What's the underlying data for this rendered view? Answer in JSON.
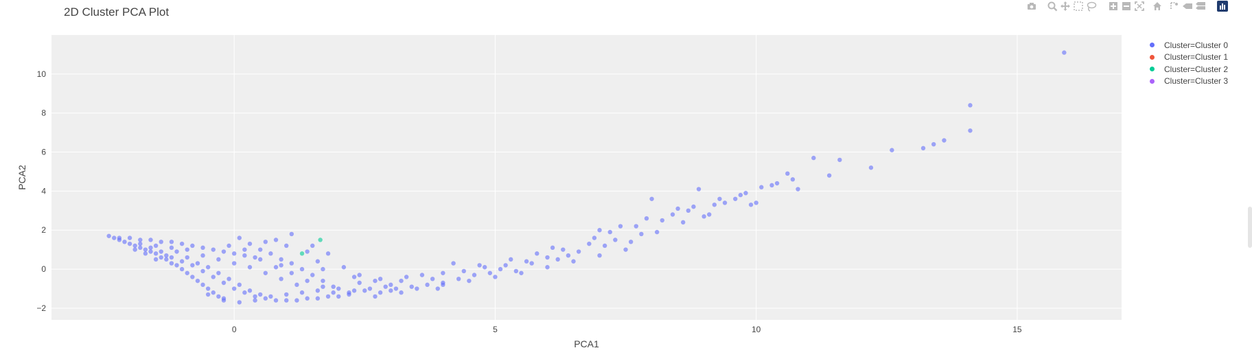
{
  "modebar": {
    "icons": [
      "camera-icon",
      "zoom-icon",
      "pan-icon",
      "box-select-icon",
      "lasso-icon",
      "zoom-in-icon",
      "zoom-out-icon",
      "autoscale-icon",
      "home-icon",
      "spike-lines-icon",
      "hover-closest-icon",
      "hover-compare-icon",
      "plotly-logo-icon"
    ],
    "accent": "#1f3b6e",
    "icon_color": "#b9b9b9"
  },
  "colors": {
    "background": "#ffffff",
    "plot_bg": "#efefef",
    "grid": "#ffffff"
  },
  "chart_data": {
    "type": "scatter",
    "title": "2D Cluster PCA Plot",
    "xlabel": "PCA1",
    "ylabel": "PCA2",
    "xlim": [
      -3.5,
      17
    ],
    "ylim": [
      -2.6,
      12
    ],
    "xticks": [
      0,
      5,
      10,
      15
    ],
    "yticks": [
      -2,
      0,
      2,
      4,
      6,
      8,
      10
    ],
    "grid": true,
    "legend_position": "top-right",
    "marker_opacity": 0.6,
    "series": [
      {
        "name": "Cluster=Cluster 0",
        "color": "#636efa",
        "points": [
          [
            -2.4,
            1.7
          ],
          [
            -2.3,
            1.6
          ],
          [
            -2.2,
            1.5
          ],
          [
            -2.1,
            1.4
          ],
          [
            -2.0,
            1.3
          ],
          [
            -1.9,
            1.2
          ],
          [
            -1.8,
            1.1
          ],
          [
            -1.7,
            1.0
          ],
          [
            -1.6,
            0.9
          ],
          [
            -1.5,
            0.8
          ],
          [
            -1.4,
            0.6
          ],
          [
            -1.3,
            0.5
          ],
          [
            -1.2,
            0.3
          ],
          [
            -1.1,
            0.2
          ],
          [
            -1.0,
            0.0
          ],
          [
            -0.9,
            -0.2
          ],
          [
            -0.8,
            -0.4
          ],
          [
            -0.7,
            -0.6
          ],
          [
            -0.6,
            -0.8
          ],
          [
            -0.5,
            -1.0
          ],
          [
            -0.4,
            -1.2
          ],
          [
            -0.3,
            -1.4
          ],
          [
            -0.2,
            -1.5
          ],
          [
            -2.2,
            1.6
          ],
          [
            -2.0,
            1.6
          ],
          [
            -1.8,
            1.5
          ],
          [
            -1.6,
            1.5
          ],
          [
            -1.4,
            1.4
          ],
          [
            -1.2,
            1.4
          ],
          [
            -1.0,
            1.3
          ],
          [
            -0.8,
            1.2
          ],
          [
            -0.6,
            1.1
          ],
          [
            -0.4,
            1.0
          ],
          [
            -0.2,
            0.9
          ],
          [
            0.0,
            0.8
          ],
          [
            0.2,
            0.7
          ],
          [
            0.4,
            0.6
          ],
          [
            -1.9,
            1.0
          ],
          [
            -1.7,
            0.8
          ],
          [
            -1.5,
            0.5
          ],
          [
            -1.3,
            0.7
          ],
          [
            -1.1,
            0.9
          ],
          [
            -0.9,
            0.6
          ],
          [
            -0.7,
            0.3
          ],
          [
            -0.5,
            0.1
          ],
          [
            -0.3,
            -0.2
          ],
          [
            -0.1,
            -0.5
          ],
          [
            0.1,
            -0.8
          ],
          [
            0.3,
            -1.1
          ],
          [
            0.5,
            -1.3
          ],
          [
            -1.5,
            1.2
          ],
          [
            -1.2,
            1.1
          ],
          [
            -0.9,
            1.0
          ],
          [
            -0.6,
            0.7
          ],
          [
            -0.3,
            0.5
          ],
          [
            0.0,
            0.3
          ],
          [
            0.3,
            0.1
          ],
          [
            0.6,
            -0.2
          ],
          [
            0.9,
            -0.5
          ],
          [
            1.2,
            -0.8
          ],
          [
            -1.8,
            1.3
          ],
          [
            -1.6,
            1.1
          ],
          [
            -1.4,
            0.9
          ],
          [
            -1.2,
            0.6
          ],
          [
            -1.0,
            0.4
          ],
          [
            -0.8,
            0.2
          ],
          [
            -0.6,
            -0.1
          ],
          [
            -0.4,
            -0.4
          ],
          [
            -0.2,
            -0.7
          ],
          [
            0.0,
            -1.0
          ],
          [
            0.2,
            -1.2
          ],
          [
            0.4,
            -1.4
          ],
          [
            0.6,
            -1.5
          ],
          [
            0.8,
            -1.6
          ],
          [
            1.0,
            -1.6
          ],
          [
            1.2,
            -1.6
          ],
          [
            1.4,
            -1.5
          ],
          [
            1.6,
            -1.5
          ],
          [
            1.8,
            -1.4
          ],
          [
            2.0,
            -1.4
          ],
          [
            -0.5,
            -1.3
          ],
          [
            -0.2,
            -1.6
          ],
          [
            0.1,
            -1.7
          ],
          [
            0.4,
            -1.6
          ],
          [
            0.7,
            -1.4
          ],
          [
            1.0,
            -1.3
          ],
          [
            1.3,
            -1.2
          ],
          [
            1.6,
            -1.1
          ],
          [
            1.9,
            -1.2
          ],
          [
            2.2,
            -1.3
          ],
          [
            0.1,
            1.6
          ],
          [
            0.3,
            1.3
          ],
          [
            0.5,
            1.0
          ],
          [
            0.7,
            0.8
          ],
          [
            0.9,
            0.5
          ],
          [
            1.1,
            0.3
          ],
          [
            1.3,
            0.0
          ],
          [
            1.5,
            -0.3
          ],
          [
            1.7,
            -0.6
          ],
          [
            1.9,
            -0.9
          ],
          [
            0.2,
            1.0
          ],
          [
            0.5,
            0.5
          ],
          [
            0.8,
            0.1
          ],
          [
            1.1,
            -0.2
          ],
          [
            1.4,
            -0.6
          ],
          [
            1.7,
            -0.9
          ],
          [
            2.0,
            -1.0
          ],
          [
            2.3,
            -1.1
          ],
          [
            2.6,
            -1.0
          ],
          [
            2.9,
            -0.9
          ],
          [
            1.1,
            1.8
          ],
          [
            0.8,
            1.5
          ],
          [
            1.0,
            1.2
          ],
          [
            1.4,
            0.9
          ],
          [
            1.8,
            0.8
          ],
          [
            1.6,
            0.4
          ],
          [
            2.1,
            0.1
          ],
          [
            2.4,
            -0.3
          ],
          [
            2.7,
            -0.6
          ],
          [
            3.0,
            -0.8
          ],
          [
            2.2,
            -1.2
          ],
          [
            2.5,
            -1.1
          ],
          [
            2.8,
            -1.2
          ],
          [
            3.1,
            -1.0
          ],
          [
            3.4,
            -0.9
          ],
          [
            3.7,
            -0.8
          ],
          [
            4.0,
            -0.7
          ],
          [
            4.3,
            -0.5
          ],
          [
            4.6,
            -0.3
          ],
          [
            4.9,
            -0.2
          ],
          [
            2.4,
            -0.7
          ],
          [
            2.8,
            -0.5
          ],
          [
            3.2,
            -0.6
          ],
          [
            3.6,
            -0.3
          ],
          [
            4.0,
            -0.2
          ],
          [
            4.4,
            -0.1
          ],
          [
            4.8,
            0.1
          ],
          [
            5.2,
            0.2
          ],
          [
            5.6,
            0.4
          ],
          [
            6.0,
            0.6
          ],
          [
            3.0,
            -1.1
          ],
          [
            3.5,
            -1.0
          ],
          [
            4.0,
            -0.8
          ],
          [
            4.5,
            -0.6
          ],
          [
            5.0,
            -0.4
          ],
          [
            5.5,
            -0.2
          ],
          [
            6.0,
            0.1
          ],
          [
            6.5,
            0.4
          ],
          [
            7.0,
            0.7
          ],
          [
            7.5,
            1.0
          ],
          [
            3.3,
            -0.4
          ],
          [
            3.8,
            -0.5
          ],
          [
            4.2,
            0.3
          ],
          [
            4.7,
            0.2
          ],
          [
            5.3,
            0.5
          ],
          [
            5.8,
            0.8
          ],
          [
            6.3,
            1.0
          ],
          [
            6.8,
            1.3
          ],
          [
            7.3,
            1.5
          ],
          [
            7.8,
            1.8
          ],
          [
            5.1,
            0.0
          ],
          [
            5.4,
            -0.1
          ],
          [
            5.7,
            0.3
          ],
          [
            6.2,
            0.5
          ],
          [
            6.6,
            0.9
          ],
          [
            7.1,
            1.2
          ],
          [
            7.6,
            1.4
          ],
          [
            8.1,
            1.9
          ],
          [
            8.6,
            2.4
          ],
          [
            9.1,
            2.8
          ],
          [
            6.1,
            1.1
          ],
          [
            6.4,
            0.7
          ],
          [
            6.9,
            1.6
          ],
          [
            7.2,
            1.9
          ],
          [
            7.7,
            2.2
          ],
          [
            8.2,
            2.5
          ],
          [
            8.7,
            3.0
          ],
          [
            9.2,
            3.3
          ],
          [
            9.7,
            3.8
          ],
          [
            10.1,
            4.2
          ],
          [
            7.0,
            2.0
          ],
          [
            7.4,
            2.2
          ],
          [
            7.9,
            2.6
          ],
          [
            8.4,
            2.8
          ],
          [
            8.8,
            3.2
          ],
          [
            9.3,
            3.6
          ],
          [
            9.8,
            3.9
          ],
          [
            10.3,
            4.3
          ],
          [
            10.7,
            4.6
          ],
          [
            10.0,
            3.4
          ],
          [
            8.0,
            3.6
          ],
          [
            8.5,
            3.1
          ],
          [
            8.9,
            4.1
          ],
          [
            9.4,
            3.4
          ],
          [
            9.6,
            3.6
          ],
          [
            9.9,
            3.3
          ],
          [
            10.4,
            4.4
          ],
          [
            10.6,
            4.9
          ],
          [
            10.8,
            4.1
          ],
          [
            9.0,
            2.7
          ],
          [
            11.1,
            5.7
          ],
          [
            11.4,
            4.8
          ],
          [
            11.6,
            5.6
          ],
          [
            12.2,
            5.2
          ],
          [
            12.6,
            6.1
          ],
          [
            13.2,
            6.2
          ],
          [
            13.4,
            6.4
          ],
          [
            13.6,
            6.6
          ],
          [
            14.1,
            7.1
          ],
          [
            14.1,
            8.4
          ],
          [
            15.9,
            11.1
          ],
          [
            2.7,
            -1.4
          ],
          [
            3.2,
            -1.2
          ],
          [
            3.9,
            -1.0
          ],
          [
            1.5,
            1.2
          ],
          [
            0.6,
            1.4
          ],
          [
            -0.1,
            1.2
          ],
          [
            0.9,
            0.2
          ],
          [
            1.7,
            0.0
          ],
          [
            2.3,
            -0.4
          ]
        ]
      },
      {
        "name": "Cluster=Cluster 1",
        "color": "#ef553b",
        "points": []
      },
      {
        "name": "Cluster=Cluster 2",
        "color": "#00cc96",
        "points": [
          [
            1.3,
            0.8
          ],
          [
            1.65,
            1.5
          ]
        ]
      },
      {
        "name": "Cluster=Cluster 3",
        "color": "#ab63fa",
        "points": []
      }
    ]
  }
}
